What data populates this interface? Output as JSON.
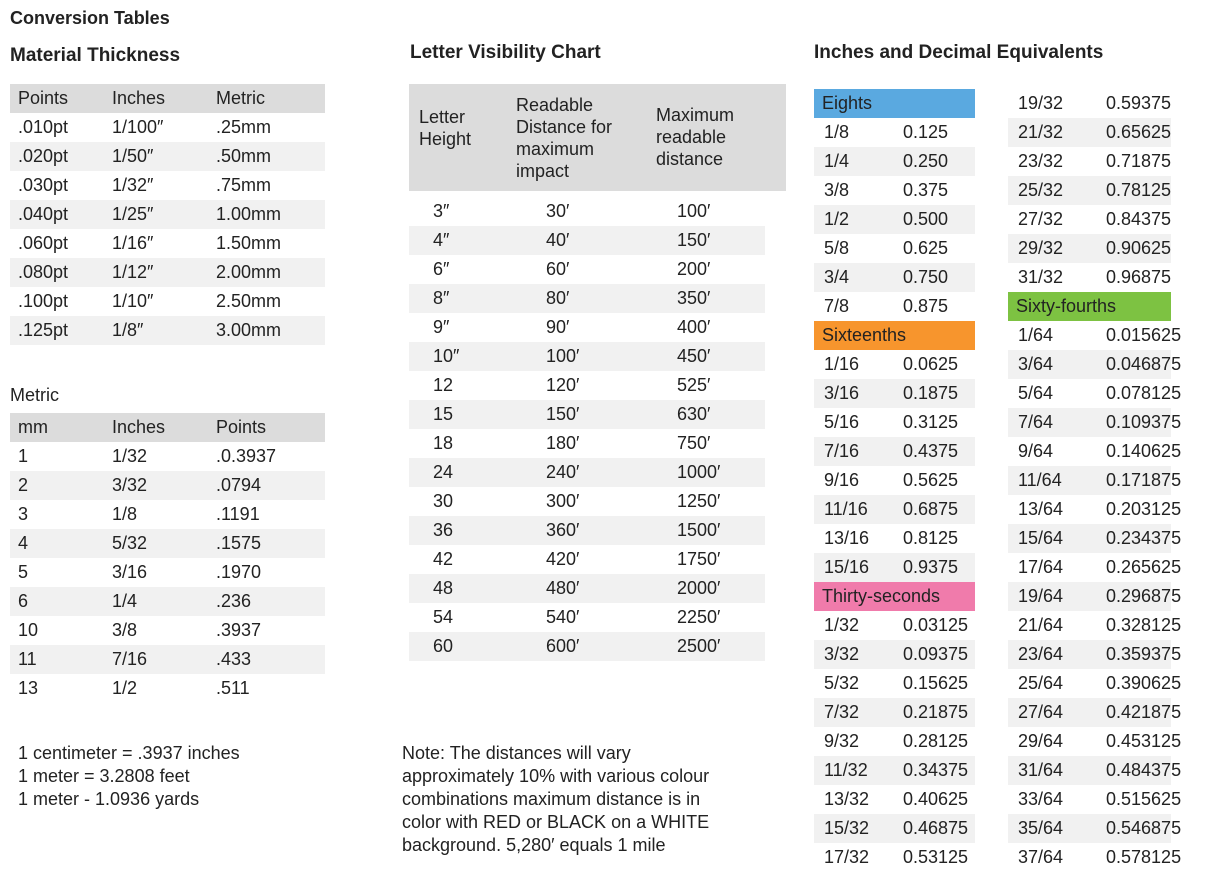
{
  "page": {
    "title": "Conversion Tables"
  },
  "material_thickness": {
    "title": "Material Thickness",
    "headers": [
      "Points",
      "Inches",
      "Metric"
    ],
    "rows": [
      [
        ".010pt",
        "1/100″",
        ".25mm"
      ],
      [
        ".020pt",
        "1/50″",
        ".50mm"
      ],
      [
        ".030pt",
        "1/32″",
        ".75mm"
      ],
      [
        ".040pt",
        "1/25″",
        "1.00mm"
      ],
      [
        ".060pt",
        "1/16″",
        "1.50mm"
      ],
      [
        ".080pt",
        "1/12″",
        "2.00mm"
      ],
      [
        ".100pt",
        "1/10″",
        "2.50mm"
      ],
      [
        ".125pt",
        "1/8″",
        "3.00mm"
      ]
    ]
  },
  "metric": {
    "title": "Metric",
    "headers": [
      "mm",
      "Inches",
      "Points"
    ],
    "rows": [
      [
        "1",
        "1/32",
        ".0.3937"
      ],
      [
        "2",
        "3/32",
        ".0794"
      ],
      [
        "3",
        "1/8",
        ".1191"
      ],
      [
        "4",
        "5/32",
        ".1575"
      ],
      [
        "5",
        "3/16",
        ".1970"
      ],
      [
        "6",
        "1/4",
        ".236"
      ],
      [
        "10",
        "3/8",
        ".3937"
      ],
      [
        "11",
        "7/16",
        ".433"
      ],
      [
        "13",
        "1/2",
        ".511"
      ]
    ],
    "notes": [
      "1 centimeter = .3937 inches",
      "1 meter = 3.2808 feet",
      "1 meter - 1.0936 yards"
    ]
  },
  "letter_visibility": {
    "title": "Letter Visibility Chart",
    "headers": [
      [
        "Letter",
        "Height"
      ],
      [
        "Readable",
        "Distance for",
        "maximum",
        "impact"
      ],
      [
        "Maximum",
        "readable",
        "distance"
      ]
    ],
    "rows": [
      [
        "3″",
        "30′",
        "100′"
      ],
      [
        "4″",
        "40′",
        "150′"
      ],
      [
        "6″",
        "60′",
        "200′"
      ],
      [
        "8″",
        "80′",
        "350′"
      ],
      [
        "9″",
        "90′",
        "400′"
      ],
      [
        "10″",
        "100′",
        "450′"
      ],
      [
        "12",
        "120′",
        "525′"
      ],
      [
        "15",
        "150′",
        "630′"
      ],
      [
        "18",
        "180′",
        "750′"
      ],
      [
        "24",
        "240′",
        "1000′"
      ],
      [
        "30",
        "300′",
        "1250′"
      ],
      [
        "36",
        "360′",
        "1500′"
      ],
      [
        "42",
        "420′",
        "1750′"
      ],
      [
        "48",
        "480′",
        "2000′"
      ],
      [
        "54",
        "540′",
        "2250′"
      ],
      [
        "60",
        "600′",
        "2500′"
      ]
    ],
    "note_lines": [
      "Note: The distances will vary",
      "approximately 10% with various colour",
      "combinations maximum distance is in",
      "color with RED or BLACK on a WHITE",
      "background. 5,280′ equals 1 mile"
    ]
  },
  "decimals": {
    "title": "Inches and Decimal Equivalents",
    "colors": {
      "eights": "#5aa9e0",
      "sixteenths": "#f7952d",
      "thirty_seconds": "#f07bab",
      "sixty_fourths": "#7dc242"
    },
    "left_rows": [
      {
        "type": "cat",
        "label": "Eights",
        "color_key": "eights"
      },
      {
        "frac": "1/8",
        "dec": "0.125"
      },
      {
        "frac": "1/4",
        "dec": "0.250"
      },
      {
        "frac": "3/8",
        "dec": "0.375"
      },
      {
        "frac": "1/2",
        "dec": "0.500"
      },
      {
        "frac": "5/8",
        "dec": "0.625"
      },
      {
        "frac": "3/4",
        "dec": "0.750"
      },
      {
        "frac": "7/8",
        "dec": "0.875"
      },
      {
        "type": "cat",
        "label": "Sixteenths",
        "color_key": "sixteenths"
      },
      {
        "frac": "1/16",
        "dec": "0.0625"
      },
      {
        "frac": "3/16",
        "dec": "0.1875"
      },
      {
        "frac": "5/16",
        "dec": "0.3125"
      },
      {
        "frac": "7/16",
        "dec": "0.4375"
      },
      {
        "frac": "9/16",
        "dec": "0.5625"
      },
      {
        "frac": "11/16",
        "dec": "0.6875"
      },
      {
        "frac": "13/16",
        "dec": "0.8125"
      },
      {
        "frac": "15/16",
        "dec": "0.9375"
      },
      {
        "type": "cat",
        "label": "Thirty-seconds",
        "color_key": "thirty_seconds"
      },
      {
        "frac": "1/32",
        "dec": "0.03125"
      },
      {
        "frac": "3/32",
        "dec": "0.09375"
      },
      {
        "frac": "5/32",
        "dec": "0.15625"
      },
      {
        "frac": "7/32",
        "dec": "0.21875"
      },
      {
        "frac": "9/32",
        "dec": "0.28125"
      },
      {
        "frac": "11/32",
        "dec": "0.34375"
      },
      {
        "frac": "13/32",
        "dec": "0.40625"
      },
      {
        "frac": "15/32",
        "dec": "0.46875"
      },
      {
        "frac": "17/32",
        "dec": "0.53125"
      }
    ],
    "right_rows": [
      {
        "frac": "19/32",
        "dec": "0.59375"
      },
      {
        "frac": "21/32",
        "dec": "0.65625"
      },
      {
        "frac": "23/32",
        "dec": "0.71875"
      },
      {
        "frac": "25/32",
        "dec": "0.78125"
      },
      {
        "frac": "27/32",
        "dec": "0.84375"
      },
      {
        "frac": "29/32",
        "dec": "0.90625"
      },
      {
        "frac": "31/32",
        "dec": "0.96875"
      },
      {
        "type": "cat",
        "label": "Sixty-fourths",
        "color_key": "sixty_fourths"
      },
      {
        "frac": "1/64",
        "dec": "0.015625"
      },
      {
        "frac": "3/64",
        "dec": "0.046875"
      },
      {
        "frac": "5/64",
        "dec": "0.078125"
      },
      {
        "frac": "7/64",
        "dec": "0.109375"
      },
      {
        "frac": "9/64",
        "dec": "0.140625"
      },
      {
        "frac": "11/64",
        "dec": "0.171875"
      },
      {
        "frac": "13/64",
        "dec": "0.203125"
      },
      {
        "frac": "15/64",
        "dec": "0.234375"
      },
      {
        "frac": "17/64",
        "dec": "0.265625"
      },
      {
        "frac": "19/64",
        "dec": "0.296875"
      },
      {
        "frac": "21/64",
        "dec": "0.328125"
      },
      {
        "frac": "23/64",
        "dec": "0.359375"
      },
      {
        "frac": "25/64",
        "dec": "0.390625"
      },
      {
        "frac": "27/64",
        "dec": "0.421875"
      },
      {
        "frac": "29/64",
        "dec": "0.453125"
      },
      {
        "frac": "31/64",
        "dec": "0.484375"
      },
      {
        "frac": "33/64",
        "dec": "0.515625"
      },
      {
        "frac": "35/64",
        "dec": "0.546875"
      },
      {
        "frac": "37/64",
        "dec": "0.578125"
      }
    ]
  }
}
